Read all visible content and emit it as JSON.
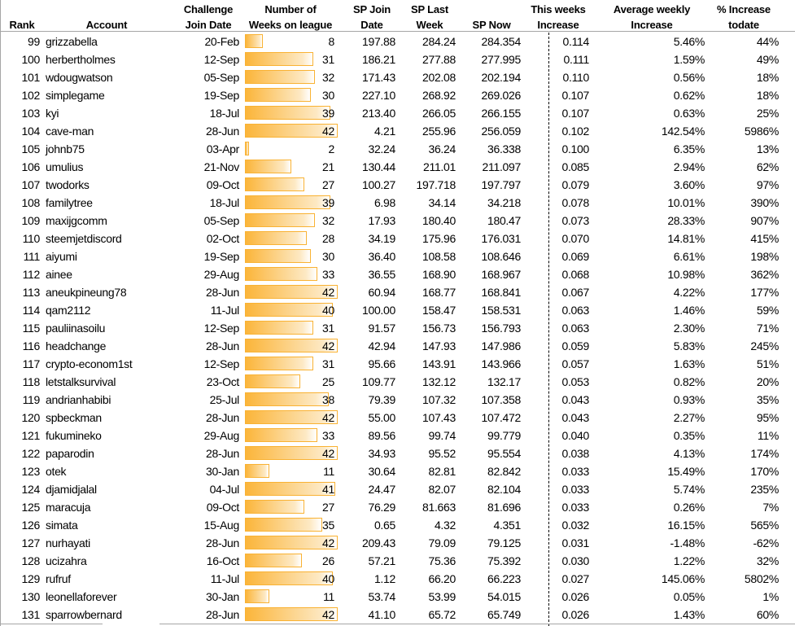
{
  "colors": {
    "bar_fill": "#fbb53a",
    "bar_border": "#f9b233",
    "grid": "#a6a6a6"
  },
  "weeks_max": 42,
  "headers": {
    "rank": "Rank",
    "account": "Account",
    "join_date": [
      "Challenge",
      "Join Date"
    ],
    "weeks": [
      "Number of",
      "Weeks on league"
    ],
    "sp_join": [
      "SP Join",
      "Date"
    ],
    "sp_last": [
      "SP Last",
      "Week"
    ],
    "sp_now": "SP Now",
    "week_inc": [
      "This weeks",
      "Increase"
    ],
    "avg_inc": [
      "Average weekly",
      "Increase"
    ],
    "pct": [
      "% Increase",
      "todate"
    ]
  },
  "rows": [
    [
      "99",
      "grizzabella",
      "20-Feb",
      "8",
      "197.88",
      "284.24",
      "284.354",
      "0.114",
      "5.46%",
      "44%"
    ],
    [
      "100",
      "herbertholmes",
      "12-Sep",
      "31",
      "186.21",
      "277.88",
      "277.995",
      "0.111",
      "1.59%",
      "49%"
    ],
    [
      "101",
      "wdougwatson",
      "05-Sep",
      "32",
      "171.43",
      "202.08",
      "202.194",
      "0.110",
      "0.56%",
      "18%"
    ],
    [
      "102",
      "simplegame",
      "19-Sep",
      "30",
      "227.10",
      "268.92",
      "269.026",
      "0.107",
      "0.62%",
      "18%"
    ],
    [
      "103",
      "kyi",
      "18-Jul",
      "39",
      "213.40",
      "266.05",
      "266.155",
      "0.107",
      "0.63%",
      "25%"
    ],
    [
      "104",
      "cave-man",
      "28-Jun",
      "42",
      "4.21",
      "255.96",
      "256.059",
      "0.102",
      "142.54%",
      "5986%"
    ],
    [
      "105",
      "johnb75",
      "03-Apr",
      "2",
      "32.24",
      "36.24",
      "36.338",
      "0.100",
      "6.35%",
      "13%"
    ],
    [
      "106",
      "umulius",
      "21-Nov",
      "21",
      "130.44",
      "211.01",
      "211.097",
      "0.085",
      "2.94%",
      "62%"
    ],
    [
      "107",
      "twodorks",
      "09-Oct",
      "27",
      "100.27",
      "197.718",
      "197.797",
      "0.079",
      "3.60%",
      "97%"
    ],
    [
      "108",
      "familytree",
      "18-Jul",
      "39",
      "6.98",
      "34.14",
      "34.218",
      "0.078",
      "10.01%",
      "390%"
    ],
    [
      "109",
      "maxijgcomm",
      "05-Sep",
      "32",
      "17.93",
      "180.40",
      "180.47",
      "0.073",
      "28.33%",
      "907%"
    ],
    [
      "110",
      "steemjetdiscord",
      "02-Oct",
      "28",
      "34.19",
      "175.96",
      "176.031",
      "0.070",
      "14.81%",
      "415%"
    ],
    [
      "111",
      "aiyumi",
      "19-Sep",
      "30",
      "36.40",
      "108.58",
      "108.646",
      "0.069",
      "6.61%",
      "198%"
    ],
    [
      "112",
      "ainee",
      "29-Aug",
      "33",
      "36.55",
      "168.90",
      "168.967",
      "0.068",
      "10.98%",
      "362%"
    ],
    [
      "113",
      "aneukpineung78",
      "28-Jun",
      "42",
      "60.94",
      "168.77",
      "168.841",
      "0.067",
      "4.22%",
      "177%"
    ],
    [
      "114",
      "qam2112",
      "11-Jul",
      "40",
      "100.00",
      "158.47",
      "158.531",
      "0.063",
      "1.46%",
      "59%"
    ],
    [
      "115",
      "pauliinasoilu",
      "12-Sep",
      "31",
      "91.57",
      "156.73",
      "156.793",
      "0.063",
      "2.30%",
      "71%"
    ],
    [
      "116",
      "headchange",
      "28-Jun",
      "42",
      "42.94",
      "147.93",
      "147.986",
      "0.059",
      "5.83%",
      "245%"
    ],
    [
      "117",
      "crypto-econom1st",
      "12-Sep",
      "31",
      "95.66",
      "143.91",
      "143.966",
      "0.057",
      "1.63%",
      "51%"
    ],
    [
      "118",
      "letstalksurvival",
      "23-Oct",
      "25",
      "109.77",
      "132.12",
      "132.17",
      "0.053",
      "0.82%",
      "20%"
    ],
    [
      "119",
      "andrianhabibi",
      "25-Jul",
      "38",
      "79.39",
      "107.32",
      "107.358",
      "0.043",
      "0.93%",
      "35%"
    ],
    [
      "120",
      "spbeckman",
      "28-Jun",
      "42",
      "55.00",
      "107.43",
      "107.472",
      "0.043",
      "2.27%",
      "95%"
    ],
    [
      "121",
      "fukumineko",
      "29-Aug",
      "33",
      "89.56",
      "99.74",
      "99.779",
      "0.040",
      "0.35%",
      "11%"
    ],
    [
      "122",
      "paparodin",
      "28-Jun",
      "42",
      "34.93",
      "95.52",
      "95.554",
      "0.038",
      "4.13%",
      "174%"
    ],
    [
      "123",
      "otek",
      "30-Jan",
      "11",
      "30.64",
      "82.81",
      "82.842",
      "0.033",
      "15.49%",
      "170%"
    ],
    [
      "124",
      "djamidjalal",
      "04-Jul",
      "41",
      "24.47",
      "82.07",
      "82.104",
      "0.033",
      "5.74%",
      "235%"
    ],
    [
      "125",
      "maracuja",
      "09-Oct",
      "27",
      "76.29",
      "81.663",
      "81.696",
      "0.033",
      "0.26%",
      "7%"
    ],
    [
      "126",
      "simata",
      "15-Aug",
      "35",
      "0.65",
      "4.32",
      "4.351",
      "0.032",
      "16.15%",
      "565%"
    ],
    [
      "127",
      "nurhayati",
      "28-Jun",
      "42",
      "209.43",
      "79.09",
      "79.125",
      "0.031",
      "-1.48%",
      "-62%"
    ],
    [
      "128",
      "ucizahra",
      "16-Oct",
      "26",
      "57.21",
      "75.36",
      "75.392",
      "0.030",
      "1.22%",
      "32%"
    ],
    [
      "129",
      "rufruf",
      "11-Jul",
      "40",
      "1.12",
      "66.20",
      "66.223",
      "0.027",
      "145.06%",
      "5802%"
    ],
    [
      "130",
      "leonellaforever",
      "30-Jan",
      "11",
      "53.74",
      "53.99",
      "54.015",
      "0.026",
      "0.05%",
      "1%"
    ],
    [
      "131",
      "sparrowbernard",
      "28-Jun",
      "42",
      "41.10",
      "65.72",
      "65.749",
      "0.026",
      "1.43%",
      "60%"
    ]
  ]
}
